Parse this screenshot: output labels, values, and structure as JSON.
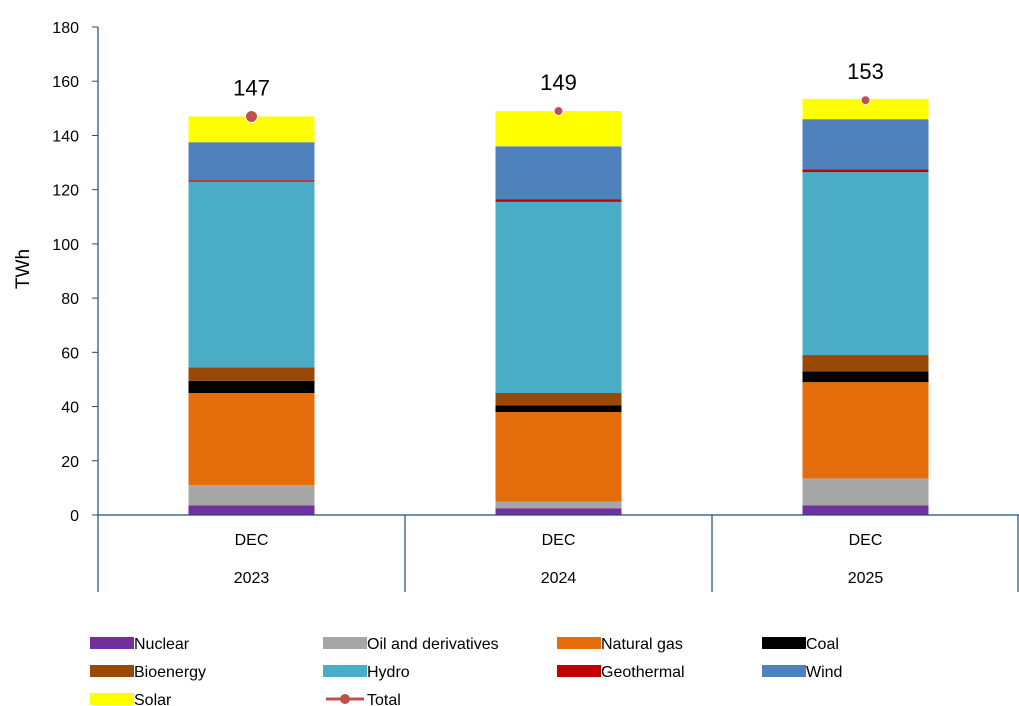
{
  "chart_data": {
    "type": "bar",
    "stacked": true,
    "title": "",
    "xlabel": "",
    "ylabel": "TWh",
    "ylim": [
      0,
      180
    ],
    "yticks": [
      0,
      20,
      40,
      60,
      80,
      100,
      120,
      140,
      160,
      180
    ],
    "grid": false,
    "legend_position": "bottom",
    "categories": [
      {
        "month": "DEC",
        "year": "2023"
      },
      {
        "month": "DEC",
        "year": "2024"
      },
      {
        "month": "DEC",
        "year": "2025"
      }
    ],
    "series": [
      {
        "name": "Nuclear",
        "color": "#7030A0",
        "values": [
          3.5,
          2.5,
          3.5
        ]
      },
      {
        "name": "Oil and derivatives",
        "color": "#A6A6A6",
        "values": [
          7.5,
          2.5,
          10.0
        ]
      },
      {
        "name": "Natural gas",
        "color": "#E46C0A",
        "values": [
          34.0,
          33.0,
          35.5
        ]
      },
      {
        "name": "Coal",
        "color": "#000000",
        "values": [
          4.5,
          2.5,
          4.0
        ]
      },
      {
        "name": "Bioenergy",
        "color": "#984807",
        "values": [
          5.0,
          4.5,
          6.0
        ]
      },
      {
        "name": "Hydro",
        "color": "#4BACC6",
        "values": [
          68.5,
          70.5,
          67.5
        ]
      },
      {
        "name": "Geothermal",
        "color": "#C00000",
        "values": [
          0.5,
          1.0,
          1.0
        ]
      },
      {
        "name": "Wind",
        "color": "#4F81BD",
        "values": [
          14.0,
          19.5,
          18.5
        ]
      },
      {
        "name": "Solar",
        "color": "#FFFF00",
        "values": [
          9.5,
          13.0,
          7.5
        ]
      }
    ],
    "total": {
      "name": "Total",
      "color": "#C0504D",
      "values": [
        147,
        149,
        153
      ],
      "labels": [
        "147",
        "149",
        "153"
      ]
    }
  }
}
